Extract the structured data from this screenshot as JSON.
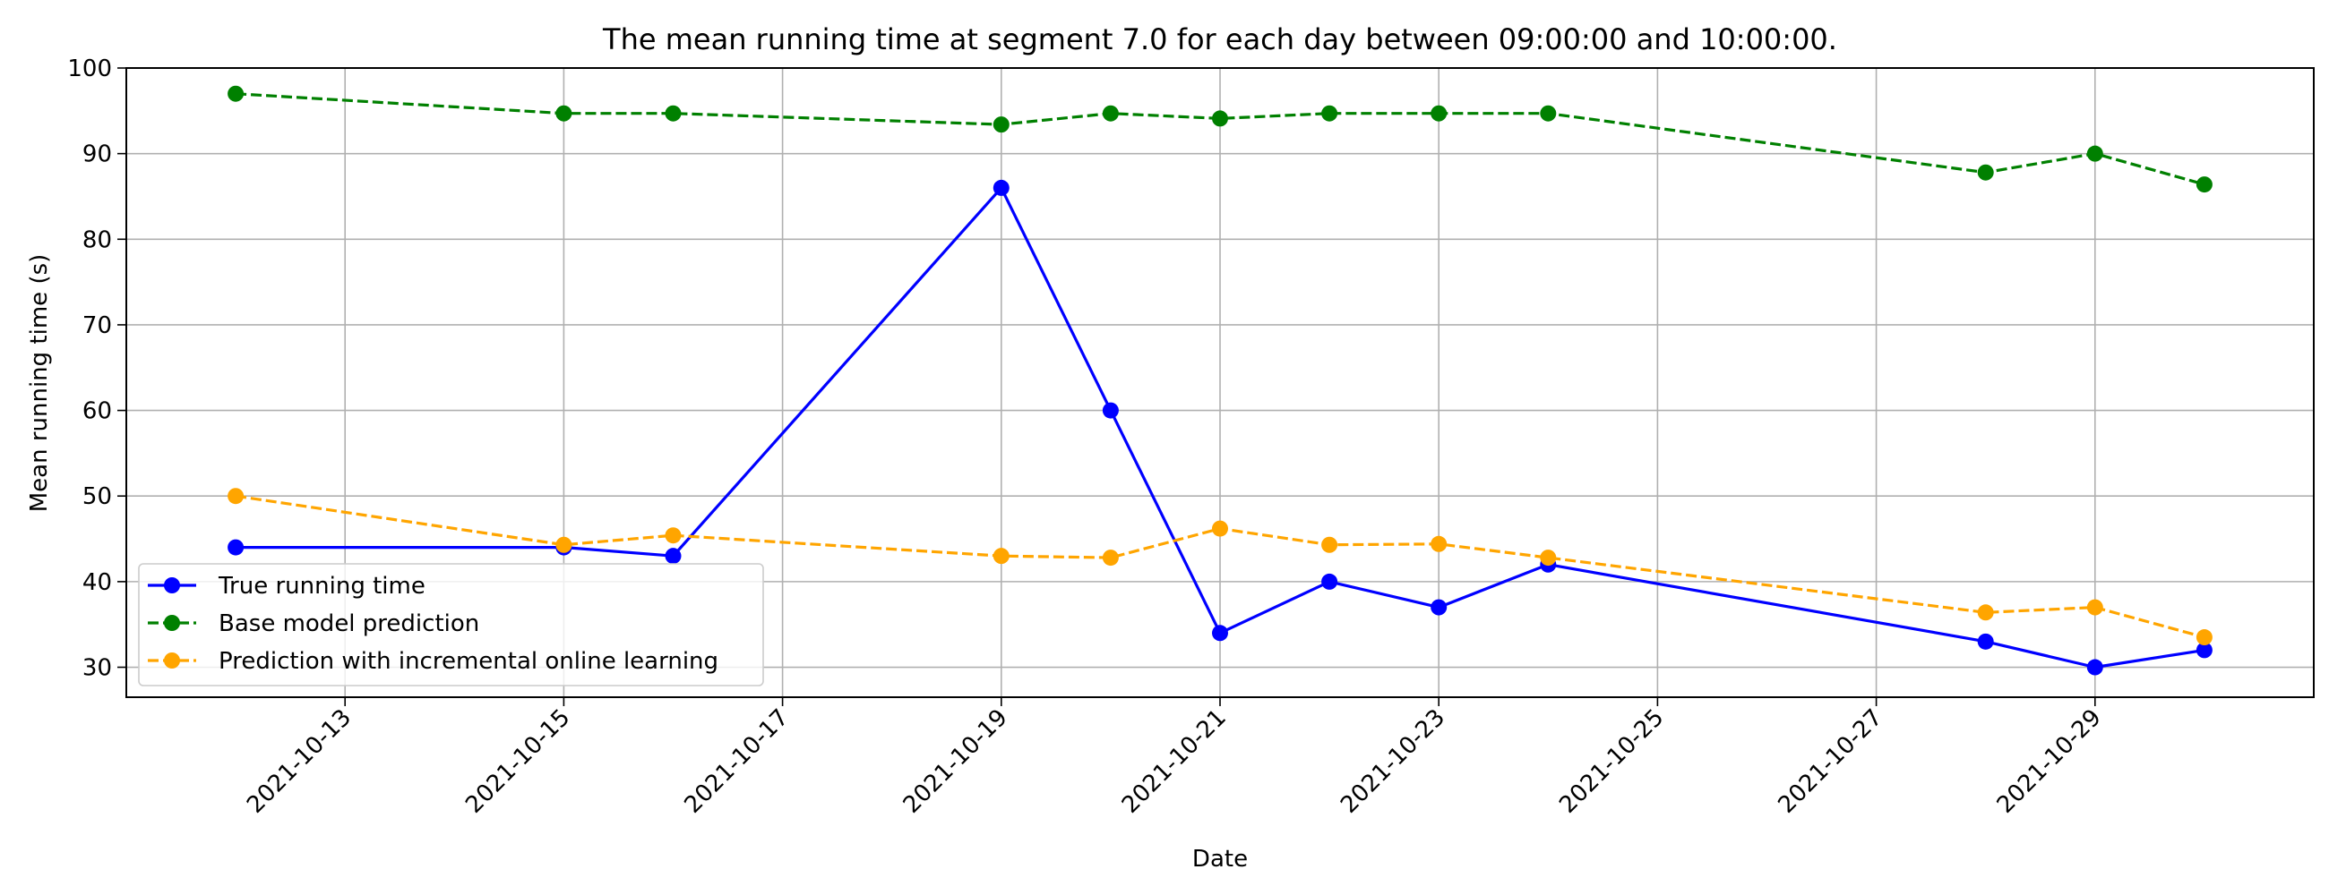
{
  "chart_data": {
    "type": "line",
    "title": "The mean running time at segment 7.0 for each day between 09:00:00 and 10:00:00.",
    "xlabel": "Date",
    "ylabel": "Mean running time (s)",
    "xlim": [
      "2021-10-11",
      "2021-10-31"
    ],
    "ylim": [
      26.5,
      100
    ],
    "x_ticks": [
      "2021-10-13",
      "2021-10-15",
      "2021-10-17",
      "2021-10-19",
      "2021-10-21",
      "2021-10-23",
      "2021-10-25",
      "2021-10-27",
      "2021-10-29"
    ],
    "y_ticks": [
      30,
      40,
      50,
      60,
      70,
      80,
      90,
      100
    ],
    "grid": true,
    "legend_position": "lower-left",
    "x": [
      "2021-10-12",
      "2021-10-15",
      "2021-10-16",
      "2021-10-19",
      "2021-10-20",
      "2021-10-21",
      "2021-10-22",
      "2021-10-23",
      "2021-10-24",
      "2021-10-28",
      "2021-10-29",
      "2021-10-30"
    ],
    "series": [
      {
        "name": "True running time",
        "color": "#0000ff",
        "line_style": "solid",
        "values": [
          44,
          44,
          43,
          86,
          60,
          34,
          40,
          37,
          42,
          33,
          30,
          32
        ]
      },
      {
        "name": "Base model prediction",
        "color": "#008000",
        "line_style": "dashed",
        "values": [
          97,
          94.7,
          94.7,
          93.4,
          94.7,
          94.1,
          94.7,
          94.7,
          94.7,
          87.8,
          90,
          86.4
        ]
      },
      {
        "name": "Prediction with incremental online learning",
        "color": "#ffa500",
        "line_style": "dashed",
        "values": [
          50,
          44.3,
          45.4,
          43,
          42.8,
          46.2,
          44.3,
          44.4,
          42.8,
          36.4,
          37,
          33.5
        ]
      }
    ]
  }
}
